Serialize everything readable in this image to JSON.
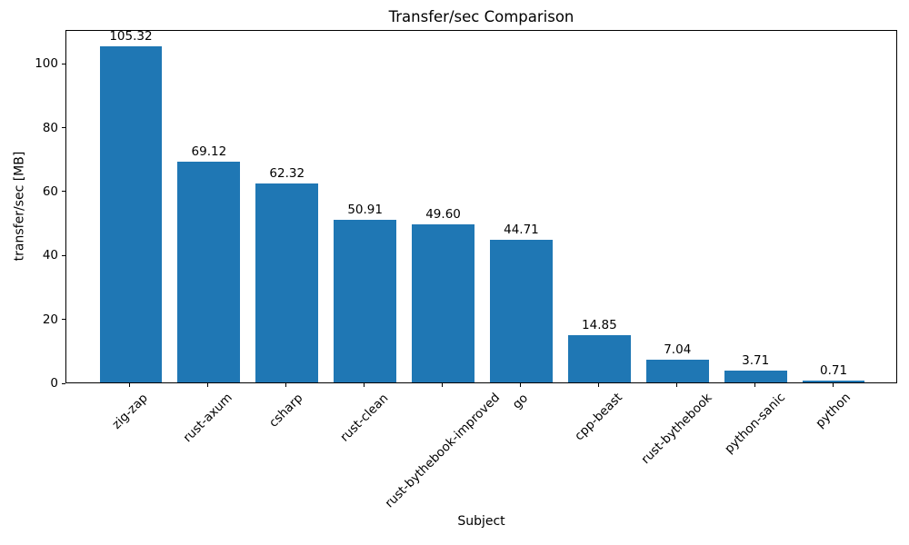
{
  "chart_data": {
    "type": "bar",
    "title": "Transfer/sec Comparison",
    "xlabel": "Subject",
    "ylabel": "transfer/sec [MB]",
    "categories": [
      "zig-zap",
      "rust-axum",
      "csharp",
      "rust-clean",
      "rust-bythebook-improved",
      "go",
      "cpp-beast",
      "rust-bythebook",
      "python-sanic",
      "python"
    ],
    "values": [
      105.32,
      69.12,
      62.32,
      50.91,
      49.6,
      44.71,
      14.85,
      7.04,
      3.71,
      0.71
    ],
    "value_labels": [
      "105.32",
      "69.12",
      "62.32",
      "50.91",
      "49.60",
      "44.71",
      "14.85",
      "7.04",
      "3.71",
      "0.71"
    ],
    "ytick_labels": [
      "0",
      "20",
      "40",
      "60",
      "80",
      "100"
    ],
    "yticks": [
      0,
      20,
      40,
      60,
      80,
      100
    ],
    "ylim": [
      0,
      110.6
    ],
    "bar_color": "#1f77b4",
    "axis_color": "#000000",
    "text_color": "#000000",
    "grid": false,
    "legend": null,
    "xtick_rotation_deg": 45
  }
}
